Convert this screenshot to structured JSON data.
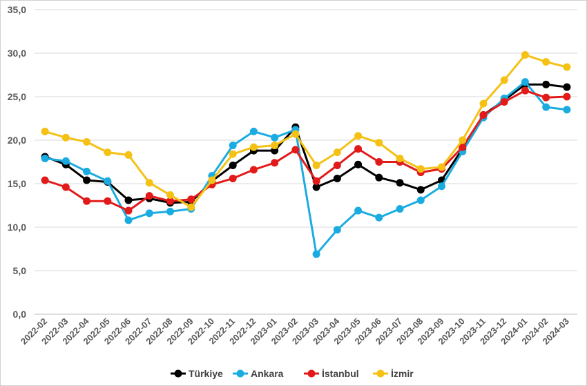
{
  "chart_data": {
    "type": "line",
    "title": "",
    "xlabel": "",
    "ylabel": "",
    "ylim": [
      0,
      35
    ],
    "yticks": [
      "0,0",
      "5,0",
      "10,0",
      "15,0",
      "20,0",
      "25,0",
      "30,0",
      "35,0"
    ],
    "grid": "horizontal",
    "legend_position": "bottom",
    "categories": [
      "2022-02",
      "2022-03",
      "2022-04",
      "2022-05",
      "2022-06",
      "2022-07",
      "2022-08",
      "2022-09",
      "2022-10",
      "2022-11",
      "2022-12",
      "2023-01",
      "2023-02",
      "2023-03",
      "2023-04",
      "2023-05",
      "2023-06",
      "2023-07",
      "2023-08",
      "2023-09",
      "2023-10",
      "2023-11",
      "2023-12",
      "2024-01",
      "2024-02",
      "2024-03"
    ],
    "series": [
      {
        "name": "Türkiye",
        "color": "#000000",
        "values": [
          18.1,
          17.2,
          15.4,
          15.2,
          13.1,
          13.3,
          12.8,
          12.9,
          15.3,
          17.1,
          18.8,
          18.8,
          21.5,
          14.6,
          15.6,
          17.2,
          15.7,
          15.1,
          14.3,
          15.4,
          19.0,
          22.9,
          24.6,
          26.4,
          26.4,
          26.1
        ]
      },
      {
        "name": "Ankara",
        "color": "#1AACE0",
        "values": [
          17.9,
          17.6,
          16.4,
          15.3,
          10.8,
          11.6,
          11.8,
          12.1,
          15.9,
          19.4,
          21.0,
          20.3,
          21.2,
          6.9,
          9.7,
          11.9,
          11.1,
          12.1,
          13.1,
          14.7,
          18.7,
          22.6,
          24.8,
          26.7,
          23.8,
          23.5
        ]
      },
      {
        "name": "İstanbul",
        "color": "#E21A1A",
        "values": [
          15.4,
          14.6,
          13.0,
          13.0,
          11.9,
          13.6,
          13.0,
          13.2,
          14.9,
          15.6,
          16.6,
          17.4,
          18.9,
          15.3,
          17.1,
          19.0,
          17.5,
          17.5,
          16.3,
          16.7,
          19.2,
          22.9,
          24.4,
          25.7,
          24.9,
          25.0
        ]
      },
      {
        "name": "İzmir",
        "color": "#F5C115",
        "values": [
          21.0,
          20.3,
          19.8,
          18.6,
          18.3,
          15.1,
          13.7,
          12.3,
          15.4,
          18.4,
          19.2,
          19.4,
          20.7,
          17.1,
          18.6,
          20.5,
          19.7,
          17.9,
          16.7,
          16.9,
          20.0,
          24.2,
          26.9,
          29.8,
          29.0,
          28.4
        ]
      }
    ]
  }
}
